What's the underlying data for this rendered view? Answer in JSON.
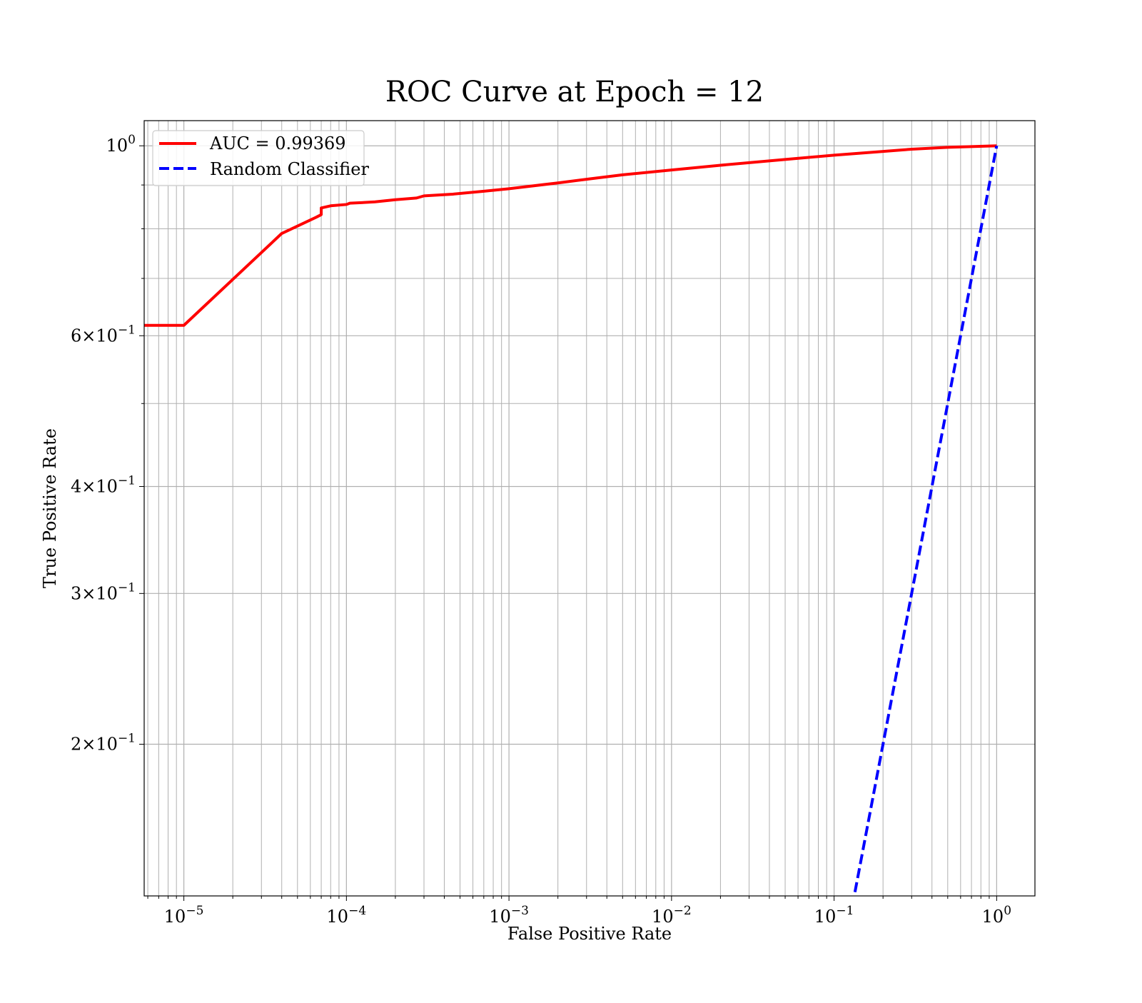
{
  "chart_data": {
    "type": "line",
    "title": "ROC Curve at Epoch = 12",
    "xlabel": "False Positive Rate",
    "ylabel": "True Positive Rate",
    "xscale": "log",
    "yscale": "log",
    "xlim": [
      5.7e-06,
      1.72
    ],
    "ylim": [
      0.133,
      1.07
    ],
    "grid": true,
    "legend_position": "top-left",
    "x_ticks": [
      {
        "value": 1e-05,
        "base": "10",
        "exp": "−5"
      },
      {
        "value": 0.0001,
        "base": "10",
        "exp": "−4"
      },
      {
        "value": 0.001,
        "base": "10",
        "exp": "−3"
      },
      {
        "value": 0.01,
        "base": "10",
        "exp": "−2"
      },
      {
        "value": 0.1,
        "base": "10",
        "exp": "−1"
      },
      {
        "value": 1,
        "base": "10",
        "exp": "0"
      }
    ],
    "y_ticks": [
      {
        "value": 1.0,
        "base": "10",
        "exp": "0"
      },
      {
        "value": 0.6,
        "base": "6×10",
        "exp": "−1"
      },
      {
        "value": 0.4,
        "base": "4×10",
        "exp": "−1"
      },
      {
        "value": 0.3,
        "base": "3×10",
        "exp": "−1"
      },
      {
        "value": 0.2,
        "base": "2×10",
        "exp": "−1"
      }
    ],
    "series": [
      {
        "name": "AUC = 0.99369",
        "color": "#ff0000",
        "style": "solid",
        "points": [
          [
            5.7e-06,
            0.617
          ],
          [
            1e-05,
            0.617
          ],
          [
            4e-05,
            0.79
          ],
          [
            6.5e-05,
            0.825
          ],
          [
            7e-05,
            0.831
          ],
          [
            7e-05,
            0.846
          ],
          [
            8e-05,
            0.851
          ],
          [
            0.0001,
            0.854
          ],
          [
            0.000105,
            0.857
          ],
          [
            0.00012,
            0.858
          ],
          [
            0.00015,
            0.86
          ],
          [
            0.0002,
            0.865
          ],
          [
            0.00027,
            0.869
          ],
          [
            0.0003,
            0.874
          ],
          [
            0.00045,
            0.878
          ],
          [
            0.0007,
            0.885
          ],
          [
            0.001,
            0.891
          ],
          [
            0.002,
            0.905
          ],
          [
            0.003,
            0.914
          ],
          [
            0.005,
            0.925
          ],
          [
            0.01,
            0.937
          ],
          [
            0.02,
            0.949
          ],
          [
            0.05,
            0.964
          ],
          [
            0.1,
            0.975
          ],
          [
            0.2,
            0.985
          ],
          [
            0.3,
            0.991
          ],
          [
            0.5,
            0.996
          ],
          [
            1.0,
            1.0
          ]
        ]
      },
      {
        "name": "Random Classifier",
        "color": "#0000ff",
        "style": "dashed",
        "points": [
          [
            0.12,
            0.12
          ],
          [
            1.0,
            1.0
          ]
        ]
      }
    ]
  }
}
